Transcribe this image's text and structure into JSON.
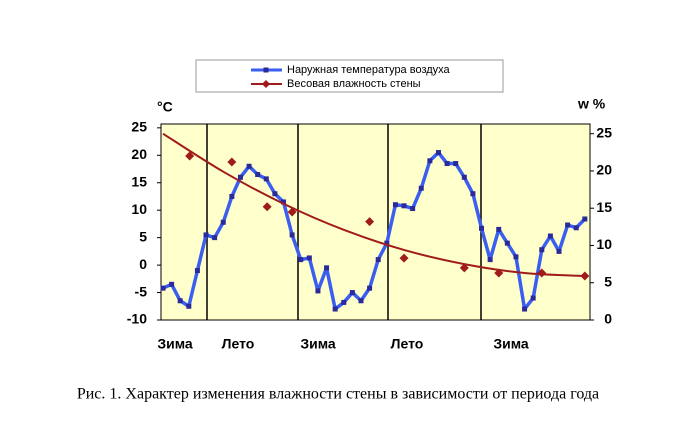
{
  "chart_data": {
    "type": "line",
    "caption": "Рис. 1. Характер изменения влажности стены в зависимости от периода года",
    "ylabel": "°C",
    "y2label": "w %",
    "season_labels": [
      "Зима",
      "Лето",
      "Зима",
      "Лето",
      "Зима"
    ],
    "xlim": [
      -0.23,
      49.6
    ],
    "ylim": [
      -10,
      25.7
    ],
    "yticks": [
      -10,
      -5,
      0,
      5,
      10,
      15,
      20,
      25
    ],
    "y2lim": [
      0,
      26.3
    ],
    "y2ticks": [
      0,
      5,
      10,
      15,
      20,
      25
    ],
    "series": [
      {
        "name": "Наружная температура воздуха",
        "color": "#3a5ef0",
        "marker_color": "#2a2a9a",
        "values": [
          -4.2,
          -3.5,
          -6.5,
          -7.5,
          -1,
          5.5,
          5,
          7.8,
          12.5,
          16,
          18,
          16.5,
          15.7,
          13,
          11.5,
          5.5,
          1,
          1.3,
          -4.7,
          -0.5,
          -8,
          -6.8,
          -5,
          -6.5,
          -4.2,
          1,
          4,
          11,
          10.8,
          10.3,
          14,
          19,
          20.5,
          18.5,
          18.5,
          16,
          13,
          6.7,
          1,
          6.5,
          4,
          1.5,
          -8,
          -6,
          2.8,
          5.3,
          2.5,
          7.3,
          6.8,
          8.4
        ]
      },
      {
        "name": "Весовая влажность стены",
        "color": "#a01c1c",
        "axis": "y2",
        "x": [
          3.1,
          8,
          12.1,
          15,
          24,
          28,
          35,
          39,
          44,
          49
        ],
        "values": [
          22,
          21.2,
          15.2,
          14.5,
          13.2,
          8.3,
          7,
          6.3,
          6.3,
          5.9
        ],
        "trend_x": [
          0,
          7,
          14,
          21,
          28,
          35,
          42,
          49
        ],
        "trend_values": [
          25,
          19.9,
          15.6,
          12.1,
          9.4,
          7.5,
          6.3,
          5.9
        ]
      }
    ]
  }
}
